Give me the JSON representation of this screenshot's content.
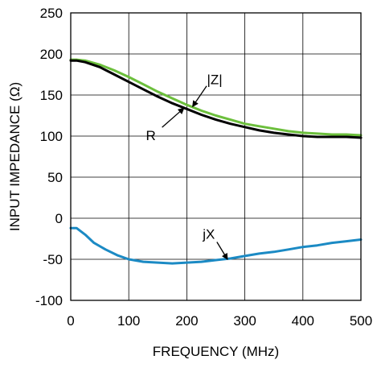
{
  "chart_data": {
    "type": "line",
    "title": "",
    "xlabel": "FREQUENCY (MHz)",
    "ylabel": "INPUT IMPEDANCE (Ω)",
    "xlim": [
      0,
      500
    ],
    "ylim": [
      -100,
      250
    ],
    "xticks": [
      "0",
      "100",
      "200",
      "300",
      "400",
      "500"
    ],
    "yticks": [
      "250",
      "200",
      "150",
      "100",
      "50",
      "0",
      "-50",
      "-100"
    ],
    "grid": true,
    "legend": "none",
    "series": [
      {
        "name": "|Z|",
        "color": "#6cbf3c",
        "x": [
          0,
          10,
          25,
          50,
          75,
          100,
          125,
          150,
          175,
          200,
          225,
          250,
          275,
          300,
          325,
          350,
          375,
          400,
          425,
          450,
          475,
          500
        ],
        "y": [
          193,
          193,
          192,
          187,
          180,
          172,
          163,
          154,
          146,
          138,
          131,
          125,
          120,
          115,
          112,
          109,
          106,
          104,
          103,
          102,
          102,
          101
        ]
      },
      {
        "name": "R",
        "color": "#000000",
        "x": [
          0,
          10,
          25,
          50,
          75,
          100,
          125,
          150,
          175,
          200,
          225,
          250,
          275,
          300,
          325,
          350,
          375,
          400,
          425,
          450,
          475,
          500
        ],
        "y": [
          192,
          192,
          190,
          184,
          175,
          166,
          157,
          148,
          140,
          133,
          126,
          120,
          115,
          111,
          107,
          104,
          102,
          100,
          99,
          99,
          99,
          98
        ]
      },
      {
        "name": "jX",
        "color": "#1b8ac4",
        "x": [
          0,
          10,
          25,
          40,
          60,
          80,
          100,
          125,
          150,
          175,
          200,
          225,
          250,
          275,
          300,
          325,
          350,
          375,
          400,
          425,
          450,
          475,
          500
        ],
        "y": [
          -12,
          -12,
          -20,
          -30,
          -38,
          -45,
          -50,
          -53,
          -54,
          -55,
          -54,
          -53,
          -51,
          -49,
          -46,
          -43,
          -41,
          -38,
          -35,
          -33,
          -30,
          -28,
          -26
        ]
      }
    ],
    "annotations": [
      {
        "text": "|Z|",
        "x": 248,
        "y": 163,
        "target_x": 210,
        "target_y": 136
      },
      {
        "text": "R",
        "x": 138,
        "y": 95,
        "target_x": 195,
        "target_y": 134
      },
      {
        "text": "jX",
        "x": 238,
        "y": -25,
        "target_x": 270,
        "target_y": -50
      }
    ]
  }
}
